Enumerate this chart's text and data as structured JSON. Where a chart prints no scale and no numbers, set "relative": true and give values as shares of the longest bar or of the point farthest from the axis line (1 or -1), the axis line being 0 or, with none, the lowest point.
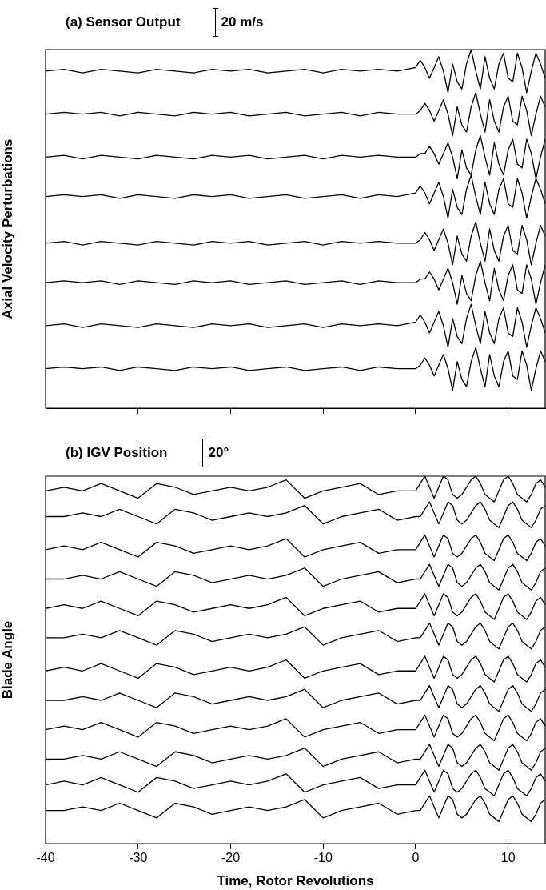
{
  "chart_data": [
    {
      "type": "line",
      "title": "(a) Sensor Output",
      "annotations": [
        "20 m/s"
      ],
      "ylabel": "Axial Velocity Perturbations",
      "relative": true,
      "grid": false,
      "marker": "none",
      "line_style": "solid",
      "tick_labels": false,
      "x": [
        -40,
        -38,
        -36,
        -34,
        -32,
        -30,
        -28,
        -26,
        -24,
        -22,
        -20,
        -18,
        -16,
        -14,
        -12,
        -10,
        -8,
        -6,
        -4,
        -2,
        0,
        0.5,
        1,
        1.5,
        2,
        2.5,
        3,
        3.5,
        4,
        4.5,
        5,
        5.5,
        6,
        6.5,
        7,
        7.5,
        8,
        8.5,
        9,
        9.5,
        10,
        10.5,
        11,
        11.5,
        12,
        12.5,
        13,
        13.5,
        14
      ],
      "xlim": [
        -40,
        14
      ],
      "xticks": [
        -40,
        -30,
        -20,
        -10,
        0,
        10
      ],
      "series": [
        {
          "color": "#000000",
          "values": [
            0.94,
            0.945,
            0.935,
            0.945,
            0.94,
            0.935,
            0.945,
            0.94,
            0.935,
            0.945,
            0.94,
            0.945,
            0.935,
            0.94,
            0.945,
            0.935,
            0.945,
            0.94,
            0.945,
            0.94,
            0.95,
            0.97,
            0.95,
            0.92,
            0.95,
            0.98,
            0.94,
            0.88,
            0.96,
            0.91,
            0.89,
            0.96,
            1.0,
            0.94,
            0.89,
            0.98,
            0.92,
            0.89,
            0.96,
            0.99,
            0.92,
            0.91,
            0.99,
            0.95,
            0.88,
            0.94,
            0.99,
            0.96,
            0.92
          ]
        },
        {
          "color": "#000000",
          "values": [
            0.82,
            0.825,
            0.82,
            0.825,
            0.815,
            0.825,
            0.82,
            0.815,
            0.825,
            0.82,
            0.825,
            0.815,
            0.82,
            0.825,
            0.815,
            0.82,
            0.825,
            0.815,
            0.825,
            0.82,
            0.82,
            0.83,
            0.85,
            0.83,
            0.8,
            0.83,
            0.86,
            0.82,
            0.76,
            0.84,
            0.79,
            0.77,
            0.84,
            0.88,
            0.82,
            0.77,
            0.86,
            0.8,
            0.77,
            0.84,
            0.87,
            0.8,
            0.79,
            0.87,
            0.83,
            0.76,
            0.82,
            0.87,
            0.84
          ]
        },
        {
          "color": "#000000",
          "values": [
            0.7,
            0.705,
            0.695,
            0.705,
            0.7,
            0.695,
            0.705,
            0.7,
            0.695,
            0.705,
            0.7,
            0.705,
            0.695,
            0.7,
            0.705,
            0.695,
            0.705,
            0.7,
            0.705,
            0.7,
            0.7,
            0.71,
            0.71,
            0.73,
            0.71,
            0.68,
            0.71,
            0.74,
            0.7,
            0.64,
            0.72,
            0.67,
            0.65,
            0.72,
            0.76,
            0.7,
            0.65,
            0.74,
            0.68,
            0.65,
            0.72,
            0.75,
            0.68,
            0.67,
            0.75,
            0.71,
            0.64,
            0.7,
            0.75
          ]
        },
        {
          "color": "#000000",
          "values": [
            0.59,
            0.595,
            0.59,
            0.595,
            0.585,
            0.595,
            0.59,
            0.585,
            0.595,
            0.59,
            0.595,
            0.585,
            0.59,
            0.595,
            0.585,
            0.59,
            0.595,
            0.585,
            0.595,
            0.59,
            0.6,
            0.62,
            0.6,
            0.57,
            0.6,
            0.63,
            0.59,
            0.53,
            0.61,
            0.56,
            0.54,
            0.61,
            0.65,
            0.59,
            0.54,
            0.63,
            0.57,
            0.54,
            0.61,
            0.64,
            0.57,
            0.56,
            0.64,
            0.6,
            0.53,
            0.59,
            0.64,
            0.61,
            0.57
          ]
        },
        {
          "color": "#000000",
          "values": [
            0.46,
            0.465,
            0.455,
            0.465,
            0.46,
            0.455,
            0.465,
            0.46,
            0.455,
            0.465,
            0.46,
            0.465,
            0.455,
            0.46,
            0.465,
            0.455,
            0.465,
            0.46,
            0.465,
            0.46,
            0.46,
            0.47,
            0.49,
            0.47,
            0.44,
            0.47,
            0.5,
            0.46,
            0.4,
            0.48,
            0.43,
            0.41,
            0.48,
            0.52,
            0.46,
            0.41,
            0.5,
            0.44,
            0.41,
            0.48,
            0.51,
            0.44,
            0.43,
            0.51,
            0.47,
            0.4,
            0.46,
            0.51,
            0.48
          ]
        },
        {
          "color": "#000000",
          "values": [
            0.35,
            0.355,
            0.35,
            0.355,
            0.345,
            0.355,
            0.35,
            0.345,
            0.355,
            0.35,
            0.355,
            0.345,
            0.35,
            0.355,
            0.345,
            0.35,
            0.355,
            0.345,
            0.355,
            0.35,
            0.35,
            0.36,
            0.36,
            0.38,
            0.36,
            0.33,
            0.36,
            0.39,
            0.35,
            0.29,
            0.37,
            0.32,
            0.3,
            0.37,
            0.41,
            0.35,
            0.3,
            0.39,
            0.33,
            0.3,
            0.37,
            0.4,
            0.33,
            0.32,
            0.4,
            0.36,
            0.29,
            0.35,
            0.4
          ]
        },
        {
          "color": "#000000",
          "values": [
            0.23,
            0.235,
            0.225,
            0.235,
            0.23,
            0.225,
            0.235,
            0.23,
            0.225,
            0.235,
            0.23,
            0.235,
            0.225,
            0.23,
            0.235,
            0.225,
            0.235,
            0.23,
            0.235,
            0.23,
            0.24,
            0.26,
            0.24,
            0.21,
            0.24,
            0.27,
            0.23,
            0.17,
            0.25,
            0.2,
            0.18,
            0.25,
            0.29,
            0.23,
            0.18,
            0.27,
            0.21,
            0.18,
            0.25,
            0.28,
            0.21,
            0.2,
            0.28,
            0.24,
            0.17,
            0.23,
            0.28,
            0.25,
            0.21
          ]
        },
        {
          "color": "#000000",
          "values": [
            0.11,
            0.115,
            0.11,
            0.115,
            0.105,
            0.115,
            0.11,
            0.105,
            0.115,
            0.11,
            0.115,
            0.105,
            0.11,
            0.115,
            0.105,
            0.11,
            0.115,
            0.105,
            0.115,
            0.11,
            0.11,
            0.12,
            0.14,
            0.12,
            0.09,
            0.12,
            0.15,
            0.11,
            0.05,
            0.13,
            0.08,
            0.06,
            0.13,
            0.17,
            0.11,
            0.06,
            0.15,
            0.09,
            0.06,
            0.13,
            0.16,
            0.09,
            0.08,
            0.16,
            0.12,
            0.05,
            0.11,
            0.16,
            0.13
          ]
        }
      ]
    },
    {
      "type": "line",
      "title": "(b) IGV Position",
      "annotations": [
        "20°"
      ],
      "ylabel": "Blade Angle",
      "xlabel": "Time, Rotor Revolutions",
      "relative": true,
      "grid": false,
      "marker": "none",
      "line_style": "solid",
      "tick_labels": "x",
      "x": [
        -40,
        -38,
        -36,
        -34,
        -32,
        -30,
        -28,
        -26,
        -24,
        -22,
        -20,
        -18,
        -16,
        -14,
        -12,
        -10,
        -8,
        -6,
        -4,
        -2,
        0,
        0.5,
        1,
        1.5,
        2,
        2.5,
        3,
        3.5,
        4,
        4.5,
        5,
        5.5,
        6,
        6.5,
        7,
        7.5,
        8,
        8.5,
        9,
        9.5,
        10,
        10.5,
        11,
        11.5,
        12,
        12.5,
        13,
        13.5,
        14
      ],
      "xlim": [
        -40,
        14
      ],
      "xticks": [
        -40,
        -30,
        -20,
        -10,
        0,
        10
      ],
      "series": [
        {
          "color": "#000000",
          "values": [
            0.96,
            0.97,
            0.96,
            0.98,
            0.96,
            0.94,
            0.98,
            0.97,
            0.95,
            0.96,
            0.97,
            0.96,
            0.97,
            0.99,
            0.94,
            0.96,
            0.97,
            0.98,
            0.95,
            0.96,
            0.96,
            0.98,
            1.0,
            0.97,
            0.94,
            0.97,
            1.0,
            0.99,
            0.95,
            0.94,
            0.95,
            0.97,
            0.99,
            1.0,
            0.98,
            0.95,
            0.94,
            0.93,
            0.96,
            0.99,
            1.0,
            0.98,
            0.95,
            0.94,
            0.93,
            0.95,
            0.98,
            0.99,
            0.97
          ]
        },
        {
          "color": "#000000",
          "values": [
            0.89,
            0.89,
            0.9,
            0.89,
            0.91,
            0.89,
            0.87,
            0.91,
            0.9,
            0.88,
            0.89,
            0.9,
            0.89,
            0.9,
            0.92,
            0.87,
            0.89,
            0.9,
            0.91,
            0.88,
            0.89,
            0.89,
            0.91,
            0.93,
            0.9,
            0.87,
            0.9,
            0.93,
            0.92,
            0.88,
            0.87,
            0.88,
            0.9,
            0.92,
            0.93,
            0.91,
            0.88,
            0.87,
            0.86,
            0.89,
            0.92,
            0.93,
            0.91,
            0.88,
            0.87,
            0.86,
            0.88,
            0.91,
            0.92
          ]
        },
        {
          "color": "#000000",
          "values": [
            0.8,
            0.81,
            0.8,
            0.82,
            0.8,
            0.78,
            0.82,
            0.81,
            0.79,
            0.8,
            0.81,
            0.8,
            0.81,
            0.83,
            0.78,
            0.8,
            0.81,
            0.82,
            0.79,
            0.8,
            0.8,
            0.82,
            0.84,
            0.81,
            0.78,
            0.81,
            0.84,
            0.83,
            0.79,
            0.78,
            0.79,
            0.81,
            0.83,
            0.84,
            0.82,
            0.79,
            0.78,
            0.77,
            0.8,
            0.83,
            0.84,
            0.82,
            0.79,
            0.78,
            0.77,
            0.79,
            0.82,
            0.83,
            0.81
          ]
        },
        {
          "color": "#000000",
          "values": [
            0.72,
            0.72,
            0.73,
            0.72,
            0.74,
            0.72,
            0.7,
            0.74,
            0.73,
            0.71,
            0.72,
            0.73,
            0.72,
            0.73,
            0.75,
            0.7,
            0.72,
            0.73,
            0.74,
            0.71,
            0.72,
            0.72,
            0.74,
            0.76,
            0.73,
            0.7,
            0.73,
            0.76,
            0.75,
            0.71,
            0.7,
            0.71,
            0.73,
            0.75,
            0.76,
            0.74,
            0.71,
            0.7,
            0.69,
            0.72,
            0.75,
            0.76,
            0.74,
            0.71,
            0.7,
            0.69,
            0.71,
            0.74,
            0.75
          ]
        },
        {
          "color": "#000000",
          "values": [
            0.64,
            0.65,
            0.64,
            0.66,
            0.64,
            0.62,
            0.66,
            0.65,
            0.63,
            0.64,
            0.65,
            0.64,
            0.65,
            0.67,
            0.62,
            0.64,
            0.65,
            0.66,
            0.63,
            0.64,
            0.64,
            0.66,
            0.68,
            0.65,
            0.62,
            0.65,
            0.68,
            0.67,
            0.63,
            0.62,
            0.63,
            0.65,
            0.67,
            0.68,
            0.66,
            0.63,
            0.62,
            0.61,
            0.64,
            0.67,
            0.68,
            0.66,
            0.63,
            0.62,
            0.61,
            0.63,
            0.66,
            0.67,
            0.65
          ]
        },
        {
          "color": "#000000",
          "values": [
            0.56,
            0.56,
            0.57,
            0.56,
            0.58,
            0.56,
            0.54,
            0.58,
            0.57,
            0.55,
            0.56,
            0.57,
            0.56,
            0.57,
            0.59,
            0.54,
            0.56,
            0.57,
            0.58,
            0.55,
            0.56,
            0.56,
            0.58,
            0.6,
            0.57,
            0.54,
            0.57,
            0.6,
            0.59,
            0.55,
            0.54,
            0.55,
            0.57,
            0.59,
            0.6,
            0.58,
            0.55,
            0.54,
            0.53,
            0.56,
            0.59,
            0.6,
            0.58,
            0.55,
            0.54,
            0.53,
            0.55,
            0.58,
            0.59
          ]
        },
        {
          "color": "#000000",
          "values": [
            0.47,
            0.48,
            0.47,
            0.49,
            0.47,
            0.45,
            0.49,
            0.48,
            0.46,
            0.47,
            0.48,
            0.47,
            0.48,
            0.5,
            0.45,
            0.47,
            0.48,
            0.49,
            0.46,
            0.47,
            0.47,
            0.49,
            0.51,
            0.48,
            0.45,
            0.48,
            0.51,
            0.5,
            0.46,
            0.45,
            0.46,
            0.48,
            0.5,
            0.51,
            0.49,
            0.46,
            0.45,
            0.44,
            0.47,
            0.5,
            0.51,
            0.49,
            0.46,
            0.45,
            0.44,
            0.46,
            0.49,
            0.5,
            0.48
          ]
        },
        {
          "color": "#000000",
          "values": [
            0.39,
            0.39,
            0.4,
            0.39,
            0.41,
            0.39,
            0.37,
            0.41,
            0.4,
            0.38,
            0.39,
            0.4,
            0.39,
            0.4,
            0.42,
            0.37,
            0.39,
            0.4,
            0.41,
            0.38,
            0.39,
            0.39,
            0.41,
            0.43,
            0.4,
            0.37,
            0.4,
            0.43,
            0.42,
            0.38,
            0.37,
            0.38,
            0.4,
            0.42,
            0.43,
            0.41,
            0.38,
            0.37,
            0.36,
            0.39,
            0.42,
            0.43,
            0.41,
            0.38,
            0.37,
            0.36,
            0.38,
            0.41,
            0.42
          ]
        },
        {
          "color": "#000000",
          "values": [
            0.31,
            0.32,
            0.31,
            0.33,
            0.31,
            0.29,
            0.33,
            0.32,
            0.3,
            0.31,
            0.32,
            0.31,
            0.32,
            0.34,
            0.29,
            0.31,
            0.32,
            0.33,
            0.3,
            0.31,
            0.31,
            0.33,
            0.35,
            0.32,
            0.29,
            0.32,
            0.35,
            0.34,
            0.3,
            0.29,
            0.3,
            0.32,
            0.34,
            0.35,
            0.33,
            0.3,
            0.29,
            0.28,
            0.31,
            0.34,
            0.35,
            0.33,
            0.3,
            0.29,
            0.28,
            0.3,
            0.33,
            0.34,
            0.32
          ]
        },
        {
          "color": "#000000",
          "values": [
            0.23,
            0.23,
            0.24,
            0.23,
            0.25,
            0.23,
            0.21,
            0.25,
            0.24,
            0.22,
            0.23,
            0.24,
            0.23,
            0.24,
            0.26,
            0.21,
            0.23,
            0.24,
            0.25,
            0.22,
            0.23,
            0.23,
            0.25,
            0.27,
            0.24,
            0.21,
            0.24,
            0.27,
            0.26,
            0.22,
            0.21,
            0.22,
            0.24,
            0.26,
            0.27,
            0.25,
            0.22,
            0.21,
            0.2,
            0.23,
            0.26,
            0.27,
            0.25,
            0.22,
            0.21,
            0.2,
            0.22,
            0.25,
            0.26
          ]
        },
        {
          "color": "#000000",
          "values": [
            0.16,
            0.17,
            0.16,
            0.18,
            0.16,
            0.14,
            0.18,
            0.17,
            0.15,
            0.16,
            0.17,
            0.16,
            0.17,
            0.19,
            0.14,
            0.16,
            0.17,
            0.18,
            0.15,
            0.16,
            0.16,
            0.18,
            0.2,
            0.17,
            0.14,
            0.17,
            0.2,
            0.19,
            0.15,
            0.14,
            0.15,
            0.17,
            0.19,
            0.2,
            0.18,
            0.15,
            0.14,
            0.13,
            0.16,
            0.19,
            0.2,
            0.18,
            0.15,
            0.14,
            0.13,
            0.15,
            0.18,
            0.19,
            0.17
          ]
        },
        {
          "color": "#000000",
          "values": [
            0.09,
            0.09,
            0.1,
            0.09,
            0.11,
            0.09,
            0.07,
            0.11,
            0.1,
            0.08,
            0.09,
            0.1,
            0.09,
            0.1,
            0.12,
            0.07,
            0.09,
            0.1,
            0.11,
            0.08,
            0.09,
            0.09,
            0.11,
            0.13,
            0.1,
            0.07,
            0.1,
            0.13,
            0.12,
            0.08,
            0.07,
            0.08,
            0.1,
            0.12,
            0.13,
            0.11,
            0.08,
            0.07,
            0.06,
            0.09,
            0.12,
            0.13,
            0.11,
            0.08,
            0.07,
            0.06,
            0.08,
            0.11,
            0.12
          ]
        }
      ]
    }
  ]
}
